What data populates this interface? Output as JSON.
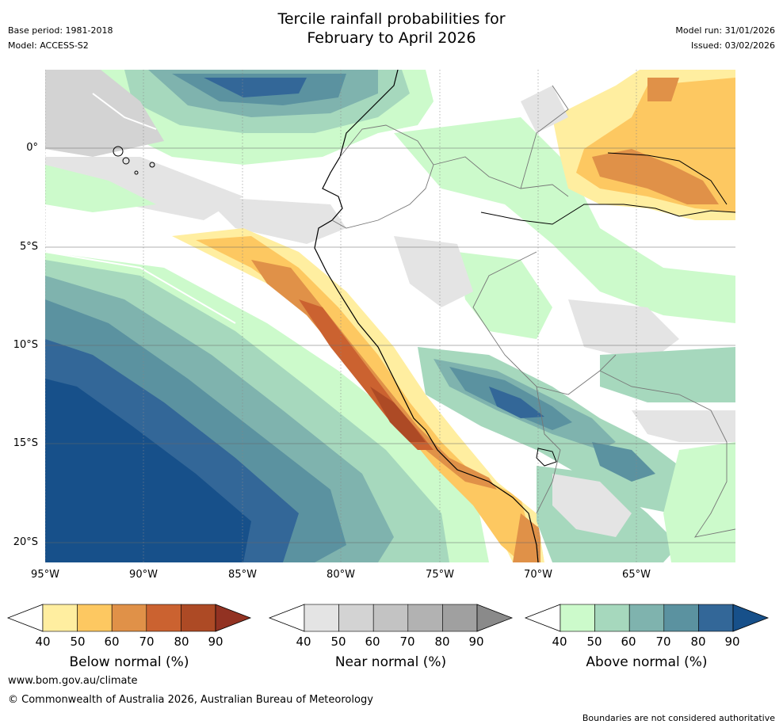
{
  "header": {
    "title_line1": "Tercile rainfall probabilities for",
    "title_line2": "February to April 2026",
    "base_period": "Base period: 1981-2018",
    "model": "Model: ACCESS-S2",
    "model_run": "Model run: 31/01/2026",
    "issued": "Issued: 03/02/2026"
  },
  "map": {
    "lat_labels": [
      "0°",
      "5°S",
      "10°S",
      "15°S",
      "20°S"
    ],
    "lon_labels": [
      "95°W",
      "90°W",
      "85°W",
      "80°W",
      "75°W",
      "70°W",
      "65°W"
    ]
  },
  "legends": [
    {
      "title": "Below normal (%)",
      "ticks": [
        "40",
        "50",
        "60",
        "70",
        "80",
        "90"
      ],
      "colors": [
        "#ffeea0",
        "#fdc861",
        "#e09148",
        "#cb6230",
        "#ad4a25",
        "#923222"
      ]
    },
    {
      "title": "Near normal (%)",
      "ticks": [
        "40",
        "50",
        "60",
        "70",
        "80",
        "90"
      ],
      "colors": [
        "#e4e4e4",
        "#d3d3d3",
        "#c3c3c3",
        "#b2b2b2",
        "#a0a0a0",
        "#8a8a8a"
      ]
    },
    {
      "title": "Above normal (%)",
      "ticks": [
        "40",
        "50",
        "60",
        "70",
        "80",
        "90"
      ],
      "colors": [
        "#ccfacb",
        "#a6d8bd",
        "#7fb3ae",
        "#5b92a0",
        "#336798",
        "#17508a"
      ]
    }
  ],
  "footer": {
    "website": "www.bom.gov.au/climate",
    "copyright": "© Commonwealth of Australia 2026, Australian Bureau of Meteorology",
    "disclaimer": "Boundaries are not considered authoritative"
  }
}
